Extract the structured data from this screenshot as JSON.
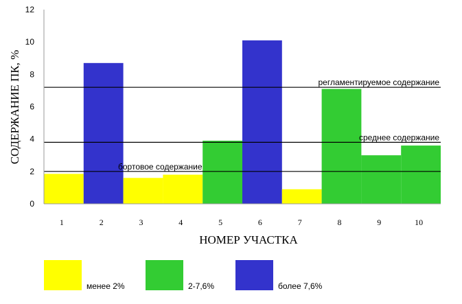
{
  "chart_data": {
    "type": "bar",
    "xlabel": "НОМЕР УЧАСТКА",
    "ylabel": "СОДЕРЖАНИЕ ПК, %",
    "ylim": [
      0,
      12
    ],
    "yticks": [
      0,
      2,
      4,
      6,
      8,
      10,
      12
    ],
    "categories": [
      "1",
      "2",
      "3",
      "4",
      "5",
      "6",
      "7",
      "8",
      "9",
      "10"
    ],
    "values": [
      1.85,
      8.7,
      1.6,
      1.8,
      3.9,
      10.1,
      0.9,
      7.1,
      3.0,
      3.6
    ],
    "bar_classes": [
      0,
      2,
      0,
      0,
      1,
      2,
      0,
      1,
      1,
      1
    ],
    "classes": [
      {
        "name": "менее 2%",
        "color": "#ffff00"
      },
      {
        "name": "2-7,6%",
        "color": "#33cc33"
      },
      {
        "name": "более 7,6%",
        "color": "#3333cc"
      }
    ],
    "reference_lines": [
      {
        "value": 7.2,
        "label": "регламентируемое содержание"
      },
      {
        "value": 3.8,
        "label": "среднее содержание"
      },
      {
        "value": 2.0,
        "label": "бортовое содержание"
      }
    ],
    "grid": false,
    "legend_position": "bottom"
  }
}
